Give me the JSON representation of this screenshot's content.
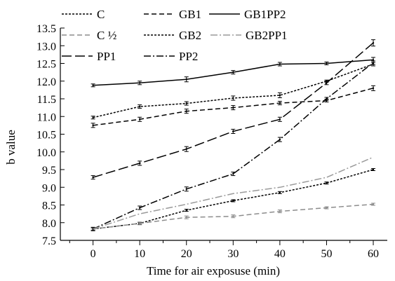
{
  "chart_data": {
    "type": "line",
    "title": "",
    "xlabel": "Time for air exposuse (min)",
    "ylabel": "b value",
    "x": [
      0,
      10,
      20,
      30,
      40,
      50,
      60
    ],
    "xlim": [
      -7,
      63
    ],
    "ylim": [
      7.5,
      13.5
    ],
    "xticks": [
      "0",
      "10",
      "20",
      "30",
      "40",
      "50",
      "60"
    ],
    "yticks": [
      "7.5",
      "8.0",
      "8.5",
      "9.0",
      "9.5",
      "10.0",
      "10.5",
      "11.0",
      "11.5",
      "12.0",
      "12.5",
      "13.0",
      "13.5"
    ],
    "grid": false,
    "legend_position": "top-left",
    "series": [
      {
        "name": "C",
        "values": [
          7.82,
          7.98,
          8.35,
          8.62,
          8.85,
          9.12,
          9.5
        ],
        "errors": [
          0.03,
          0.03,
          0.03,
          0.03,
          0.03,
          0.03,
          0.03
        ],
        "style": "dotted",
        "color": "#000000",
        "error_bars": true
      },
      {
        "name": "C ½",
        "values": [
          7.82,
          7.98,
          8.15,
          8.18,
          8.32,
          8.42,
          8.52
        ],
        "errors": [
          0.04,
          0.04,
          0.04,
          0.04,
          0.04,
          0.03,
          0.03
        ],
        "style": "dashed",
        "color": "#8c8c8c",
        "error_bars": true
      },
      {
        "name": "PP1",
        "values": [
          9.28,
          9.68,
          10.08,
          10.58,
          10.92,
          11.95,
          13.08
        ],
        "errors": [
          0.05,
          0.06,
          0.07,
          0.06,
          0.06,
          0.05,
          0.09
        ],
        "style": "longdash",
        "color": "#000000",
        "error_bars": true
      },
      {
        "name": "GB1",
        "values": [
          10.75,
          10.92,
          11.15,
          11.25,
          11.38,
          11.45,
          11.8
        ],
        "errors": [
          0.06,
          0.06,
          0.06,
          0.06,
          0.05,
          0.04,
          0.07
        ],
        "style": "dashed",
        "color": "#000000",
        "error_bars": true
      },
      {
        "name": "GB2",
        "values": [
          10.97,
          11.28,
          11.37,
          11.52,
          11.6,
          12.0,
          12.48
        ],
        "errors": [
          0.04,
          0.05,
          0.05,
          0.06,
          0.07,
          0.03,
          0.05
        ],
        "style": "dotted",
        "color": "#000000",
        "error_bars": true
      },
      {
        "name": "PP2",
        "values": [
          7.82,
          8.42,
          8.95,
          9.38,
          10.35,
          11.5,
          12.52
        ],
        "errors": [
          0.05,
          0.05,
          0.06,
          0.05,
          0.06,
          0.04,
          0.05
        ],
        "style": "dashdot",
        "color": "#000000",
        "error_bars": true
      },
      {
        "name": "GB1PP2",
        "values": [
          11.88,
          11.95,
          12.05,
          12.25,
          12.48,
          12.5,
          12.6
        ],
        "errors": [
          0.04,
          0.05,
          0.07,
          0.05,
          0.05,
          0.04,
          0.07
        ],
        "style": "solid",
        "color": "#000000",
        "error_bars": true
      },
      {
        "name": "GB2PP1",
        "values": [
          7.82,
          8.25,
          8.52,
          8.82,
          9.0,
          9.28,
          9.85
        ],
        "errors": [
          0.03,
          0.03,
          0.03,
          0.03,
          0.03,
          0.03,
          0.07
        ],
        "style": "dashdot",
        "color": "#9a9a9a",
        "error_bars": false
      }
    ]
  }
}
